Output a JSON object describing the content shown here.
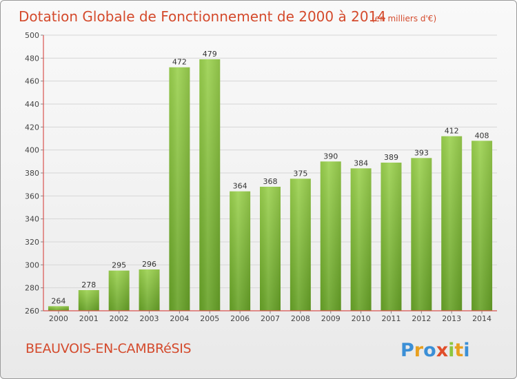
{
  "chart_data": {
    "type": "bar",
    "title": "Dotation Globale de Fonctionnement de 2000 à 2014",
    "subtitle": "(en milliers d'€)",
    "categories": [
      "2000",
      "2001",
      "2002",
      "2003",
      "2004",
      "2005",
      "2006",
      "2007",
      "2008",
      "2009",
      "2010",
      "2011",
      "2012",
      "2013",
      "2014"
    ],
    "values": [
      264,
      278,
      295,
      296,
      472,
      479,
      364,
      368,
      375,
      390,
      384,
      389,
      393,
      412,
      408
    ],
    "ylim": [
      260,
      500
    ],
    "yticks": [
      260,
      280,
      300,
      320,
      340,
      360,
      380,
      400,
      420,
      440,
      460,
      480,
      500
    ],
    "grid": true,
    "colors": {
      "bar_top": "#9bd14f",
      "bar_bottom": "#6aa52a",
      "axis": "#d9534f",
      "title": "#d44a2c"
    }
  },
  "footer": {
    "commune": "BEAUVOIS-EN-CAMBRéSIS",
    "logo_text": "Proxiti"
  }
}
